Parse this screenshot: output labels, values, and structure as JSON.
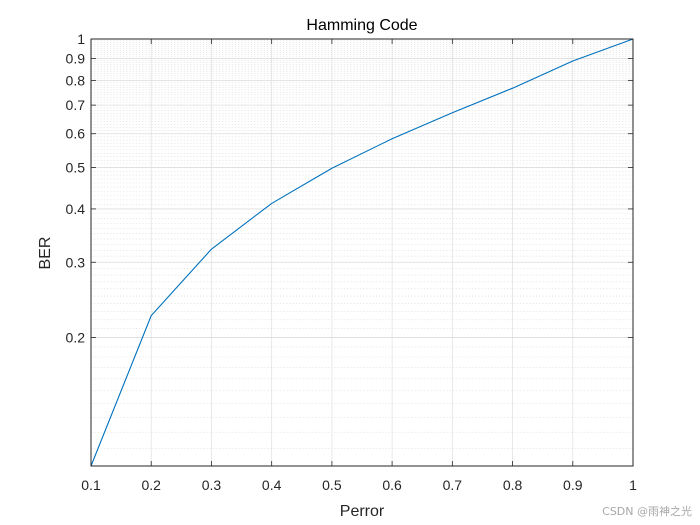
{
  "chart_data": {
    "type": "line",
    "title": "Hamming Code",
    "xlabel": "Perror",
    "ylabel": "BER",
    "xlim": [
      0.1,
      1
    ],
    "ylim": [
      0.1,
      1
    ],
    "yscale": "log",
    "grid": true,
    "minor_grid": true,
    "x_ticks": [
      0.1,
      0.2,
      0.3,
      0.4,
      0.5,
      0.6,
      0.7,
      0.8,
      0.9,
      1
    ],
    "x_tick_labels": [
      "0.1",
      "0.2",
      "0.3",
      "0.4",
      "0.5",
      "0.6",
      "0.7",
      "0.8",
      "0.9",
      "1"
    ],
    "y_ticks": [
      0.2,
      0.3,
      0.4,
      0.5,
      0.6,
      0.7,
      0.8,
      0.9,
      1
    ],
    "y_tick_labels": [
      "0.2",
      "0.3",
      "0.4",
      "0.5",
      "0.6",
      "0.7",
      "0.8",
      "0.9",
      "1"
    ],
    "series": [
      {
        "color": "#0072bd",
        "x": [
          0.1,
          0.2,
          0.3,
          0.4,
          0.5,
          0.6,
          0.7,
          0.8,
          0.9,
          1
        ],
        "y": [
          0.1,
          0.225,
          0.322,
          0.412,
          0.498,
          0.584,
          0.672,
          0.767,
          0.888,
          1
        ]
      }
    ]
  },
  "watermark": "CSDN @雨神之光"
}
